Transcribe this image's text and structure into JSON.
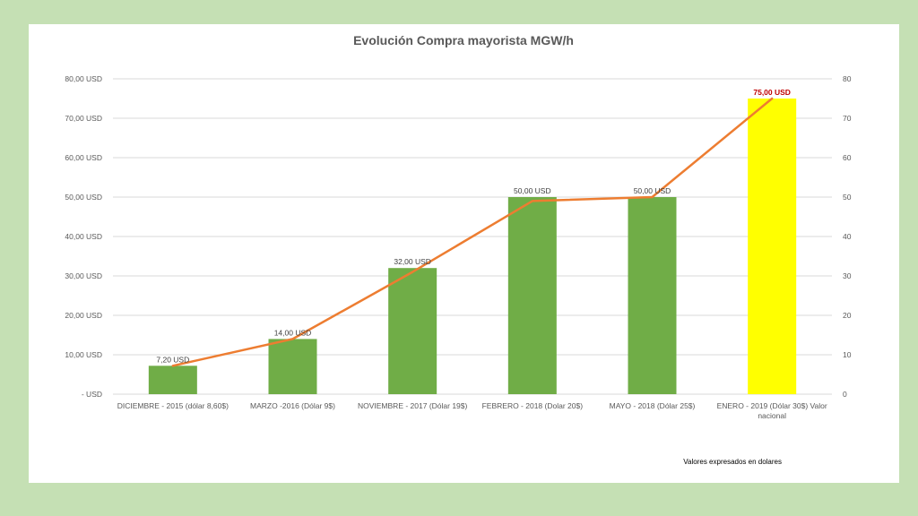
{
  "chart_data": {
    "type": "bar",
    "title": "Evolución Compra mayorista MGW/h",
    "categories": [
      "DICIEMBRE - 2015 (dólar 8,60$)",
      "MARZO -2016 (Dólar 9$)",
      "NOVIEMBRE - 2017 (Dólar 19$)",
      "FEBRERO - 2018 (Dolar 20$)",
      "MAYO - 2018 (Dólar 25$)",
      "ENERO - 2019 (Dólar 30$) Valor nacional"
    ],
    "values": [
      7.2,
      14,
      32,
      50,
      50,
      75
    ],
    "data_labels": [
      "7,20 USD",
      "14,00 USD",
      "32,00 USD",
      "50,00 USD",
      "50,00 USD",
      "75,00 USD"
    ],
    "line_values": [
      7.2,
      14,
      31,
      49,
      50,
      75
    ],
    "ylim": [
      0,
      80
    ],
    "y_ticks": [
      0,
      10,
      20,
      30,
      40,
      50,
      60,
      70,
      80
    ],
    "y_tick_labels_left": [
      "-   USD",
      "10,00 USD",
      "20,00 USD",
      "30,00 USD",
      "40,00 USD",
      "50,00 USD",
      "60,00 USD",
      "70,00 USD",
      "80,00 USD"
    ],
    "y_tick_labels_right": [
      "0",
      "10",
      "20",
      "30",
      "40",
      "50",
      "60",
      "70",
      "80"
    ],
    "grid": true,
    "highlight_index": 5,
    "colors": {
      "bar": "#70ad47",
      "bar_highlight": "#ffff00",
      "line": "#ed7d31",
      "highlight_label": "#c00000",
      "grid": "#d9d9d9"
    },
    "note": "Valores expresados en dolares"
  }
}
